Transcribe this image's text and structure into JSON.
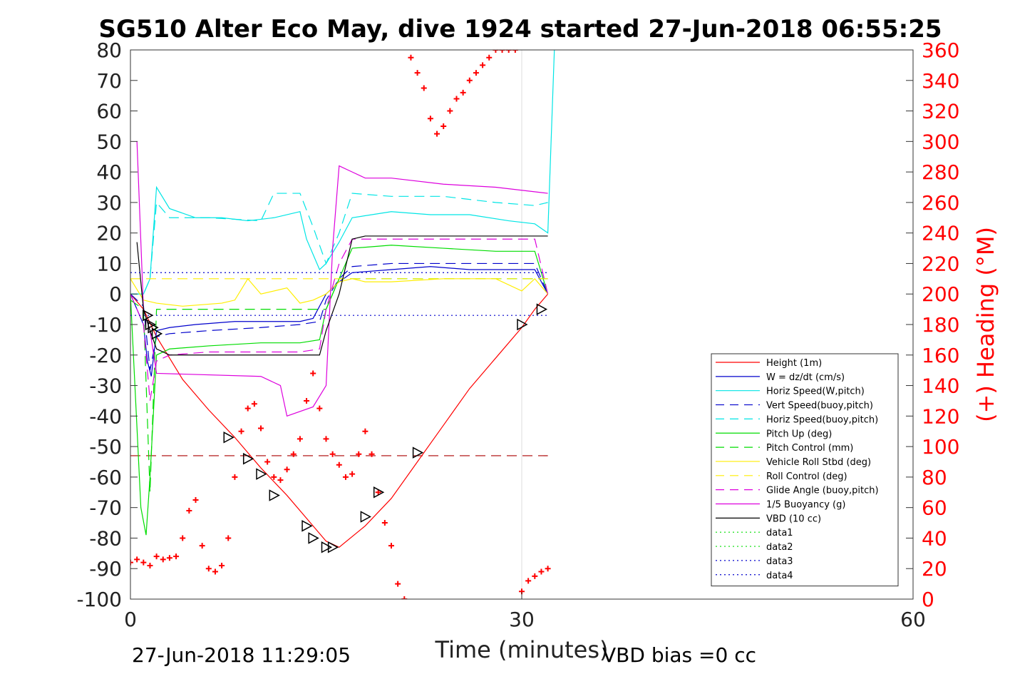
{
  "chart_data": {
    "type": "line",
    "title": "SG510 Alter Eco May, dive 1924 started 27-Jun-2018 06:55:25",
    "xlabel": "Time (minutes)",
    "ylabel_right": "(+) Heading (°M)",
    "xlim": [
      0,
      60
    ],
    "ylim": [
      -100,
      80
    ],
    "ylim_right": [
      0,
      360
    ],
    "xticks": [
      0,
      30,
      60
    ],
    "yticks": [
      -100,
      -90,
      -80,
      -70,
      -60,
      -50,
      -40,
      -30,
      -20,
      -10,
      0,
      10,
      20,
      30,
      40,
      50,
      60,
      70,
      80
    ],
    "yticks_right": [
      0,
      20,
      40,
      60,
      80,
      100,
      120,
      140,
      160,
      180,
      200,
      220,
      240,
      260,
      280,
      300,
      320,
      340,
      360
    ],
    "grid": "x-only",
    "legend_position": "lower-right",
    "footer_left": "27-Jun-2018 11:29:05",
    "footer_right": "VBD bias =0 cc",
    "series": [
      {
        "name": "Height (1m)",
        "color": "#ff0000",
        "style": "solid",
        "x": [
          0,
          1,
          2,
          4,
          6,
          8,
          10,
          12,
          14,
          15,
          16,
          18,
          20,
          22,
          24,
          26,
          28,
          30,
          31,
          32
        ],
        "y": [
          0,
          -5,
          -14,
          -28,
          -38,
          -47,
          -57,
          -66,
          -76,
          -81,
          -83,
          -76,
          -67,
          -55,
          -43,
          -31,
          -21,
          -11,
          -5,
          0
        ]
      },
      {
        "name": "W = dz/dt (cm/s)",
        "color": "#0000cc",
        "style": "solid",
        "x": [
          0,
          0.5,
          1,
          1.3,
          1.6,
          2,
          3,
          5,
          8,
          11,
          13,
          14,
          15,
          16,
          17,
          20,
          23,
          26,
          29,
          31,
          32
        ],
        "y": [
          0,
          -5,
          -10,
          -22,
          -27,
          -12,
          -11,
          -10,
          -9,
          -9,
          -9,
          -8,
          0,
          4,
          7,
          8,
          9,
          8,
          8,
          8,
          0
        ]
      },
      {
        "name": "Horiz Speed(W,pitch)",
        "color": "#00e5e5",
        "style": "solid",
        "x": [
          0,
          1,
          1.5,
          2,
          3,
          5,
          7,
          9,
          11,
          13,
          13.5,
          14.5,
          15,
          16,
          17,
          20,
          23,
          26,
          29,
          31,
          32,
          32.5
        ],
        "y": [
          0,
          0,
          5,
          35,
          28,
          25,
          25,
          24,
          25,
          27,
          18,
          8,
          10,
          17,
          25,
          27,
          26,
          26,
          24,
          23,
          20,
          80
        ]
      },
      {
        "name": "Vert Speed(buoy,pitch)",
        "color": "#0000cc",
        "style": "dashed",
        "x": [
          0,
          1,
          1.5,
          2,
          3,
          6,
          10,
          13,
          14.5,
          15,
          16,
          17,
          20,
          24,
          28,
          31,
          32
        ],
        "y": [
          0,
          -4,
          -25,
          -14,
          -13,
          -12,
          -11,
          -10,
          -9,
          -2,
          5,
          9,
          10,
          10,
          10,
          10,
          0
        ]
      },
      {
        "name": "Horiz Speed(buoy,pitch)",
        "color": "#00e5e5",
        "style": "dashed",
        "x": [
          0,
          1,
          1.5,
          2,
          3,
          6,
          10,
          11,
          13,
          14,
          15,
          16,
          17,
          20,
          24,
          28,
          31,
          32
        ],
        "y": [
          0,
          0,
          5,
          30,
          25,
          25,
          24,
          33,
          33,
          22,
          10,
          20,
          33,
          32,
          32,
          30,
          29,
          30
        ]
      },
      {
        "name": "Pitch Up (deg)",
        "color": "#00dd00",
        "style": "solid",
        "x": [
          0,
          0.8,
          1.2,
          1.5,
          2,
          3,
          6,
          10,
          13,
          14.5,
          15,
          16,
          17,
          20,
          24,
          28,
          31,
          32
        ],
        "y": [
          0,
          -70,
          -79,
          -60,
          -20,
          -18,
          -17,
          -16,
          -16,
          -15,
          -5,
          5,
          15,
          16,
          15,
          14,
          14,
          0
        ]
      },
      {
        "name": "Pitch Control (mm)",
        "color": "#00dd00",
        "style": "dashed",
        "x": [
          0,
          1,
          1.5,
          2,
          14,
          15,
          16,
          32
        ],
        "y": [
          -2,
          -5,
          -65,
          -5,
          -5,
          -5,
          5,
          5
        ]
      },
      {
        "name": "Vehicle Roll Stbd (deg)",
        "color": "#ffee00",
        "style": "solid",
        "x": [
          0,
          1,
          2,
          4,
          7,
          8,
          9,
          10,
          12,
          13,
          14,
          15,
          16,
          17,
          18,
          20,
          24,
          28,
          30,
          31,
          32
        ],
        "y": [
          5,
          -2,
          -3,
          -4,
          -3,
          -2,
          5,
          0,
          2,
          -3,
          -2,
          0,
          4,
          5,
          4,
          4,
          5,
          5,
          1,
          5,
          0
        ]
      },
      {
        "name": "Roll Control (deg)",
        "color": "#ffee00",
        "style": "dashed",
        "x": [
          0,
          32
        ],
        "y": [
          5,
          5
        ]
      },
      {
        "name": "Glide Angle (buoy,pitch)",
        "color": "#dd00dd",
        "style": "dashed",
        "x": [
          0,
          1,
          1.5,
          2,
          3,
          6,
          10,
          13,
          14.5,
          15,
          16,
          17,
          20,
          24,
          28,
          31,
          32
        ],
        "y": [
          0,
          -10,
          -35,
          -22,
          -20,
          -19,
          -19,
          -19,
          -18,
          -5,
          10,
          18,
          18,
          18,
          18,
          18,
          0
        ]
      },
      {
        "name": "1/5 Buoyancy (g)",
        "color": "#dd00dd",
        "style": "solid",
        "x": [
          0.5,
          1,
          1.5,
          2,
          10,
          11.5,
          12,
          14,
          15,
          15.5,
          16,
          17,
          18,
          20,
          24,
          28,
          32
        ],
        "y": [
          50,
          -5,
          -12,
          -26,
          -27,
          -30,
          -40,
          -37,
          -30,
          15,
          42,
          40,
          38,
          38,
          36,
          35,
          33
        ]
      },
      {
        "name": "VBD (10 cc)",
        "color": "#000000",
        "style": "solid",
        "x": [
          0.5,
          1,
          1.5,
          2,
          3,
          14.5,
          15,
          16,
          17,
          18,
          32
        ],
        "y": [
          17,
          -5,
          -12,
          -18,
          -20,
          -20,
          -12,
          0,
          18,
          19,
          19
        ]
      },
      {
        "name": "data1",
        "color": "#00dd00",
        "style": "dotted",
        "x": [],
        "y": []
      },
      {
        "name": "data2",
        "color": "#00dd00",
        "style": "dotted",
        "x": [],
        "y": []
      },
      {
        "name": "data3",
        "color": "#0000cc",
        "style": "dotted",
        "x": [
          0,
          32
        ],
        "y": [
          7,
          7
        ]
      },
      {
        "name": "data4",
        "color": "#0000cc",
        "style": "dotted",
        "x": [
          0,
          32
        ],
        "y": [
          -7,
          -7
        ]
      }
    ],
    "reference_lines": [
      {
        "color": "#aa0000",
        "style": "dashed",
        "x": [
          0,
          32
        ],
        "y": [
          -53,
          -53
        ]
      }
    ],
    "heading_points": {
      "color": "#ff0000",
      "marker": "plus",
      "x": [
        0,
        0.5,
        1,
        1.5,
        2,
        2.5,
        3,
        3.5,
        4,
        4.5,
        5,
        5.5,
        6,
        6.5,
        7,
        7.5,
        8,
        8.5,
        9,
        9.5,
        10,
        10.5,
        11,
        11.5,
        12,
        12.5,
        13,
        13.5,
        14,
        14.5,
        15,
        15.5,
        16,
        16.5,
        17,
        17.5,
        18,
        18.5,
        19,
        19.5,
        20,
        20.5,
        21,
        21.5,
        22,
        22.5,
        23,
        23.5,
        24,
        24.5,
        25,
        25.5,
        26,
        26.5,
        27,
        27.5,
        28,
        28.5,
        29,
        29.5,
        30,
        30.5,
        31,
        31.5,
        32
      ],
      "y": [
        24,
        26,
        24,
        22,
        28,
        26,
        27,
        28,
        40,
        58,
        65,
        35,
        20,
        18,
        22,
        40,
        80,
        110,
        125,
        128,
        112,
        90,
        80,
        78,
        85,
        95,
        105,
        130,
        148,
        125,
        105,
        95,
        88,
        80,
        82,
        95,
        110,
        95,
        70,
        50,
        35,
        10,
        0,
        355,
        345,
        335,
        315,
        305,
        310,
        320,
        328,
        332,
        340,
        345,
        350,
        355,
        360,
        360,
        360,
        360,
        5,
        12,
        15,
        18,
        20
      ]
    },
    "markers": {
      "color": "#000000",
      "marker": "triangle",
      "x": [
        1.3,
        1.5,
        1.7,
        2,
        7.5,
        9,
        10,
        11,
        13.5,
        14,
        15,
        15.5,
        18,
        19,
        22,
        30,
        31.5
      ],
      "y": [
        -7,
        -10,
        -11,
        -13,
        -47,
        -54,
        -59,
        -66,
        -76,
        -80,
        -83,
        -83,
        -73,
        -65,
        -52,
        -10,
        -5
      ]
    }
  }
}
